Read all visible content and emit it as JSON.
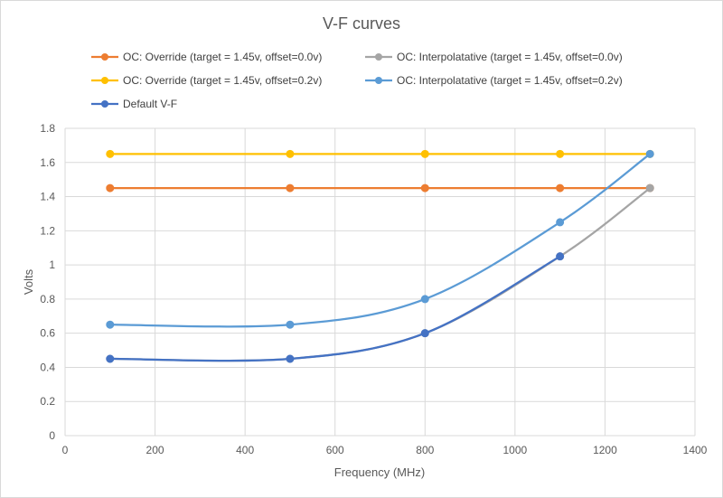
{
  "chart_data": {
    "type": "line",
    "title": "V-F curves",
    "xlabel": "Frequency (MHz)",
    "ylabel": "Volts",
    "xlim": [
      0,
      1400
    ],
    "ylim": [
      0,
      1.8
    ],
    "x_ticks": [
      0,
      200,
      400,
      600,
      800,
      1000,
      1200,
      1400
    ],
    "y_ticks": [
      0,
      0.2,
      0.4,
      0.6,
      0.8,
      1,
      1.2,
      1.4,
      1.6,
      1.8
    ],
    "x_tick_labels": [
      "0",
      "200",
      "400",
      "600",
      "800",
      "1000",
      "1200",
      "1400"
    ],
    "y_tick_labels": [
      "0",
      "0.2",
      "0.4",
      "0.6",
      "0.8",
      "1",
      "1.2",
      "1.4",
      "1.6",
      "1.8"
    ],
    "grid": true,
    "legend_position": "top",
    "series": [
      {
        "name": "OC: Override (target = 1.45v, offset=0.0v)",
        "color": "#ED7D31",
        "smooth": false,
        "x": [
          100,
          500,
          800,
          1100,
          1300
        ],
        "y": [
          1.45,
          1.45,
          1.45,
          1.45,
          1.45
        ]
      },
      {
        "name": "OC: Interpolatative (target = 1.45v, offset=0.0v)",
        "color": "#A5A5A5",
        "smooth": true,
        "x": [
          100,
          500,
          800,
          1100,
          1300
        ],
        "y": [
          0.45,
          0.45,
          0.6,
          1.05,
          1.45
        ]
      },
      {
        "name": "OC: Override (target = 1.45v, offset=0.2v)",
        "color": "#FFC000",
        "smooth": false,
        "x": [
          100,
          500,
          800,
          1100,
          1300
        ],
        "y": [
          1.65,
          1.65,
          1.65,
          1.65,
          1.65
        ]
      },
      {
        "name": "OC: Interpolatative (target = 1.45v, offset=0.2v)",
        "color": "#5B9BD5",
        "smooth": true,
        "x": [
          100,
          500,
          800,
          1100,
          1300
        ],
        "y": [
          0.65,
          0.65,
          0.8,
          1.25,
          1.65
        ]
      },
      {
        "name": "Default V-F",
        "color": "#4472C4",
        "smooth": true,
        "x": [
          100,
          500,
          800,
          1100
        ],
        "y": [
          0.45,
          0.45,
          0.6,
          1.05
        ]
      }
    ]
  }
}
